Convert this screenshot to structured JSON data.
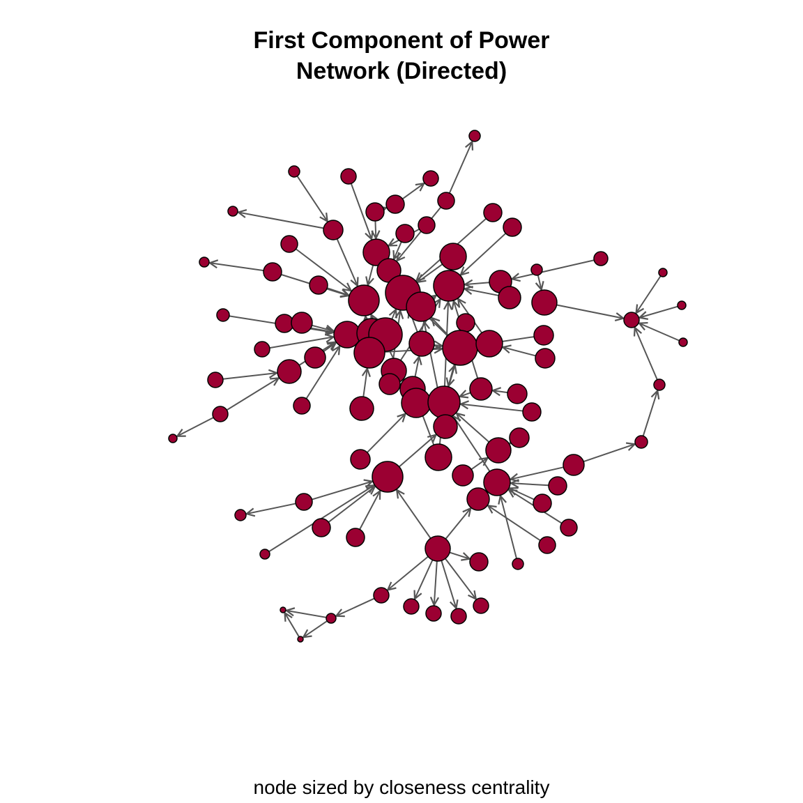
{
  "title_line1": "First Component of Power",
  "title_line2": "Network (Directed)",
  "caption": "node sized by closeness centrality",
  "colors": {
    "node_fill": "#9B0032",
    "node_stroke": "#000000",
    "edge": "#555555",
    "background": "#ffffff"
  }
}
